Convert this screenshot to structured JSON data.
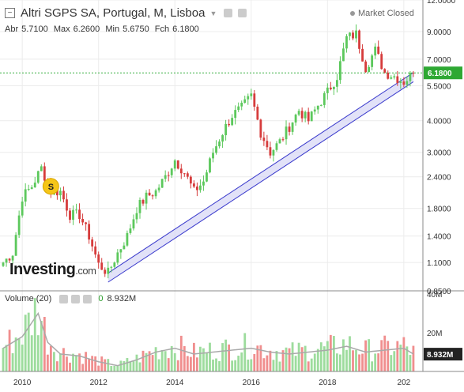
{
  "header": {
    "title": "Altri SGPS SA, Portugal, M, Lisboa",
    "ohlc": {
      "open_label": "Abr",
      "open": "5.7100",
      "high_label": "Max",
      "high": "6.2600",
      "low_label": "Min",
      "low": "5.6750",
      "close_label": "Fch",
      "close": "6.1800"
    },
    "market_status": "Market Closed"
  },
  "volume_panel": {
    "label": "Volume (20)",
    "value_prefix": "0",
    "value": "8.932M"
  },
  "logo": {
    "main": "Investing",
    "suffix": ".com"
  },
  "icons": [
    "collapse-icon",
    "caret-down-icon",
    "eye-icon",
    "gear-icon",
    "close-icon",
    "market-status-dot-icon"
  ],
  "colors": {
    "up": "#5cc85c",
    "down": "#d63c3c",
    "vol_up": "#9ddc9d",
    "vol_down": "#f08e8e",
    "price_line": "#3cb043",
    "channel_fill": "#d8d8f5",
    "channel_line": "#3a3acc",
    "ma_line": "#a9a9a9"
  },
  "chart_data": [
    {
      "type": "candlestick",
      "title": "Altri SGPS SA, Portugal, M, Lisboa",
      "yscale": "log",
      "ylim": [
        0.85,
        12.0
      ],
      "yticks": [
        "12.0000",
        "9.0000",
        "7.0000",
        "5.5000",
        "4.0000",
        "3.0000",
        "2.4000",
        "1.8000",
        "1.4000",
        "1.1000",
        "0.8500"
      ],
      "xticks": [
        "2010",
        "2012",
        "2014",
        "2016",
        "2018",
        "202"
      ],
      "xlim": [
        "2009-06",
        "2020-07"
      ],
      "last_price_label": "6.1800",
      "annotation": "S",
      "grid": true,
      "anchors": [
        [
          "2009-07",
          1.1
        ],
        [
          "2009-10",
          1.2
        ],
        [
          "2010-01",
          2.0
        ],
        [
          "2010-04",
          2.2
        ],
        [
          "2010-07",
          2.6
        ],
        [
          "2010-10",
          2.1
        ],
        [
          "2011-01",
          2.1
        ],
        [
          "2011-04",
          1.7
        ],
        [
          "2011-07",
          1.7
        ],
        [
          "2011-10",
          1.4
        ],
        [
          "2012-01",
          1.08
        ],
        [
          "2012-04",
          1.0
        ],
        [
          "2012-07",
          1.2
        ],
        [
          "2012-10",
          1.4
        ],
        [
          "2013-01",
          1.8
        ],
        [
          "2013-04",
          2.0
        ],
        [
          "2013-07",
          2.1
        ],
        [
          "2013-10",
          2.4
        ],
        [
          "2014-01",
          2.8
        ],
        [
          "2014-04",
          2.5
        ],
        [
          "2014-07",
          2.1
        ],
        [
          "2014-10",
          2.3
        ],
        [
          "2015-01",
          3.0
        ],
        [
          "2015-04",
          3.6
        ],
        [
          "2015-07",
          4.2
        ],
        [
          "2015-10",
          4.5
        ],
        [
          "2016-01",
          5.0
        ],
        [
          "2016-04",
          3.6
        ],
        [
          "2016-07",
          3.0
        ],
        [
          "2016-10",
          3.3
        ],
        [
          "2017-01",
          3.8
        ],
        [
          "2017-04",
          4.4
        ],
        [
          "2017-07",
          4.0
        ],
        [
          "2017-10",
          4.6
        ],
        [
          "2018-01",
          5.2
        ],
        [
          "2018-04",
          6.0
        ],
        [
          "2018-07",
          8.5
        ],
        [
          "2018-10",
          8.8
        ],
        [
          "2019-01",
          6.5
        ],
        [
          "2019-04",
          7.6
        ],
        [
          "2019-07",
          6.2
        ],
        [
          "2019-10",
          6.0
        ],
        [
          "2020-01",
          5.7
        ],
        [
          "2020-04",
          6.18
        ]
      ],
      "channel": {
        "lower": [
          [
            "2012-04",
            0.92
          ],
          [
            "2020-04",
            5.7
          ]
        ],
        "upper": [
          [
            "2012-04",
            1.0
          ],
          [
            "2020-04",
            6.2
          ]
        ]
      },
      "last_price_line": 6.18
    },
    {
      "type": "bar",
      "title": "Volume (20)",
      "ylim": [
        0,
        40
      ],
      "yunit": "M",
      "yticks": [
        "40M",
        "20M"
      ],
      "last_value_label": "8.932M",
      "overlay": "moving-average-20",
      "volume_profile": [
        [
          "2009-07",
          12
        ],
        [
          "2010-01",
          18
        ],
        [
          "2010-06",
          30
        ],
        [
          "2010-09",
          15
        ],
        [
          "2011-01",
          9
        ],
        [
          "2011-07",
          8
        ],
        [
          "2012-01",
          5
        ],
        [
          "2012-07",
          3
        ],
        [
          "2013-01",
          6
        ],
        [
          "2013-07",
          10
        ],
        [
          "2014-01",
          12
        ],
        [
          "2014-07",
          9
        ],
        [
          "2015-01",
          10
        ],
        [
          "2015-07",
          11
        ],
        [
          "2016-01",
          12
        ],
        [
          "2016-07",
          10
        ],
        [
          "2017-01",
          9
        ],
        [
          "2017-07",
          10
        ],
        [
          "2018-01",
          11
        ],
        [
          "2018-07",
          13
        ],
        [
          "2019-01",
          10
        ],
        [
          "2019-07",
          11
        ],
        [
          "2020-01",
          12
        ],
        [
          "2020-04",
          9
        ]
      ]
    }
  ]
}
